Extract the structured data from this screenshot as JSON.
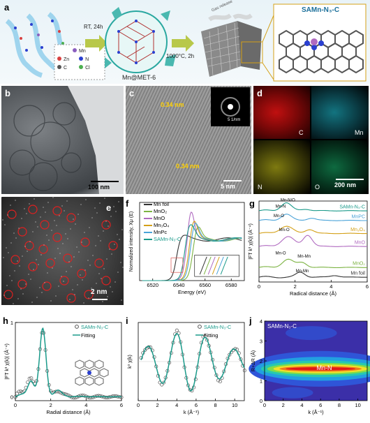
{
  "panel_a": {
    "label": "a",
    "step1": "RT, 24h",
    "step2": "1000°C, 2h",
    "mof_name": "Mn@MET-6",
    "product_title": "SAMn-N₃-C",
    "gas_label": "Gas release",
    "legend": [
      {
        "text": "Mn",
        "color": "#8b5fbf"
      },
      {
        "text": "Zn",
        "color": "#d94040"
      },
      {
        "text": "N",
        "color": "#2a3fd0"
      },
      {
        "text": "C",
        "color": "#555555"
      },
      {
        "text": "Cl",
        "color": "#4caf50"
      }
    ]
  },
  "panel_b": {
    "label": "b",
    "scale": "100 nm"
  },
  "panel_c": {
    "label": "c",
    "spacing1": "0.34 nm",
    "spacing2": "0.34 nm",
    "inset_scale": "5 1/nm",
    "scale": "5 nm"
  },
  "panel_d": {
    "label": "d",
    "maps": [
      {
        "element": "C",
        "color": "#d01010"
      },
      {
        "element": "Mn",
        "color": "#20b0c0"
      },
      {
        "element": "N",
        "color": "#c8c020"
      },
      {
        "element": "O",
        "color": "#20a060"
      }
    ],
    "scale": "200 nm"
  },
  "panel_e": {
    "label": "e",
    "scale": "2 nm"
  },
  "panel_f": {
    "label": "f",
    "chart_data": {
      "type": "line",
      "xlabel": "Energy (eV)",
      "ylabel": "Normalized intensity, Xμ (E)",
      "xlim": [
        6510,
        6590
      ],
      "xticks": [
        6520,
        6540,
        6560,
        6580
      ],
      "legend_placement": "top-left",
      "series": [
        {
          "name": "Mn foil",
          "color": "#333333"
        },
        {
          "name": "MnO₂",
          "color": "#7cb342"
        },
        {
          "name": "MnO",
          "color": "#b06ac0"
        },
        {
          "name": "Mn₃O₄",
          "color": "#d4a017"
        },
        {
          "name": "MnPc",
          "color": "#4aa3d8"
        },
        {
          "name": "SAMn-N₃-C",
          "color": "#1a9a8a"
        }
      ]
    }
  },
  "panel_g": {
    "label": "g",
    "chart_data": {
      "type": "line",
      "xlabel": "Radical distance (Å)",
      "ylabel": "|FT k³ χ(k)| (Å⁻⁴)",
      "xlim": [
        0,
        6
      ],
      "xticks": [
        0,
        2,
        4,
        6
      ],
      "series": [
        {
          "name": "SAMn-N₃-C",
          "color": "#1a9a8a"
        },
        {
          "name": "MnPC",
          "color": "#4aa3d8"
        },
        {
          "name": "Mn₃O₄",
          "color": "#d4a017"
        },
        {
          "name": "MnO",
          "color": "#b06ac0"
        },
        {
          "name": "MnO₂",
          "color": "#7cb342"
        },
        {
          "name": "Mn foil",
          "color": "#333333"
        }
      ],
      "annotations": [
        "Mn-N/O",
        "Mn-N",
        "Mn-O",
        "Mn-O",
        "Mn-O",
        "Mn-Mn",
        "Mn-Mn"
      ]
    }
  },
  "panel_h": {
    "label": "h",
    "chart_data": {
      "type": "line",
      "xlabel": "Radial distance (Å)",
      "ylabel": "|FT k³ χ(k)| (Å⁻⁴)",
      "xlim": [
        0,
        6
      ],
      "xticks": [
        0,
        2,
        4,
        6
      ],
      "ylim": [
        0,
        1
      ],
      "yticks": [
        0,
        1
      ],
      "series": [
        {
          "name": "SAMn-N₃-C",
          "style": "circles",
          "color": "#555555"
        },
        {
          "name": "Fitting",
          "style": "line",
          "color": "#1a9a8a"
        }
      ]
    }
  },
  "panel_i": {
    "label": "i",
    "chart_data": {
      "type": "line",
      "xlabel": "k (Å⁻¹)",
      "ylabel": "k³ χ(k)",
      "xlim": [
        0,
        11
      ],
      "xticks": [
        0,
        2,
        4,
        6,
        8,
        10
      ],
      "series": [
        {
          "name": "SAMn-N₃-C",
          "style": "circles",
          "color": "#555555"
        },
        {
          "name": "Fitting",
          "style": "line",
          "color": "#1a9a8a"
        }
      ]
    }
  },
  "panel_j": {
    "label": "j",
    "chart_data": {
      "type": "heatmap",
      "title": "SAMn-N₃-C",
      "xlabel": "k (Å⁻¹)",
      "ylabel": "R+ΔR (Å)",
      "xlim": [
        0,
        11
      ],
      "ylim": [
        0,
        4
      ],
      "xticks": [
        0,
        2,
        4,
        6,
        8,
        10
      ],
      "yticks": [
        0,
        1,
        2,
        3,
        4
      ],
      "peak_label": "Mn-N"
    }
  }
}
